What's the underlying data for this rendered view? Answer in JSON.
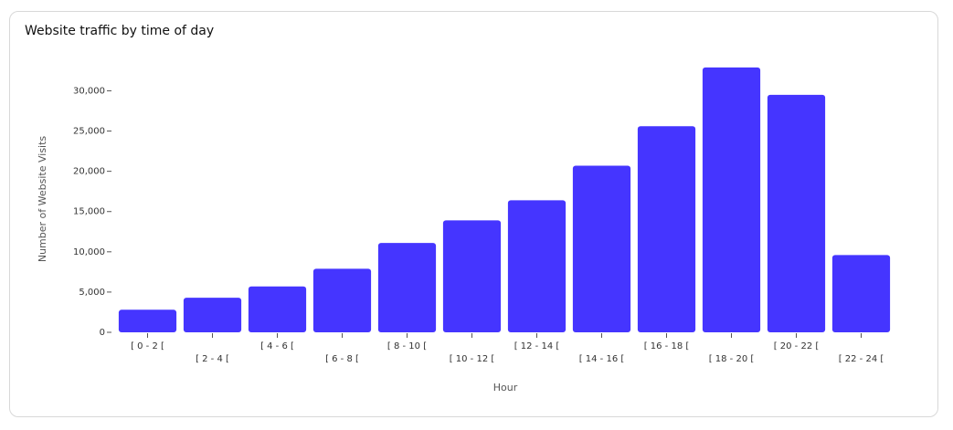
{
  "chart_data": {
    "type": "bar",
    "title": "Website traffic by time of day",
    "x_label": "Hour",
    "y_label": "Number of Website Visits",
    "categories": [
      "[ 0 - 2 [",
      "[ 2 - 4 [",
      "[ 4 - 6 [",
      "[ 6 - 8 [",
      "[ 8 - 10 [",
      "[ 10 - 12 [",
      "[ 12 - 14 [",
      "[ 14 - 16 [",
      "[ 16 - 18 [",
      "[ 18 - 20 [",
      "[ 20 - 22 [",
      "[ 22 - 24 ["
    ],
    "values": [
      2800,
      4300,
      5700,
      7900,
      11100,
      13900,
      16400,
      20700,
      25600,
      32900,
      29500,
      9600
    ],
    "color": "#4535ff",
    "ylim": [
      0,
      33000
    ],
    "yticks": [
      0,
      {
        "value": 5000,
        "label": "5,000"
      },
      {
        "value": 10000,
        "label": "10,000"
      },
      {
        "value": 15000,
        "label": "15,000"
      },
      {
        "value": 20000,
        "label": "20,000"
      },
      {
        "value": 25000,
        "label": "25,000"
      },
      {
        "value": 30000,
        "label": "30,000"
      }
    ],
    "grid": false
  }
}
